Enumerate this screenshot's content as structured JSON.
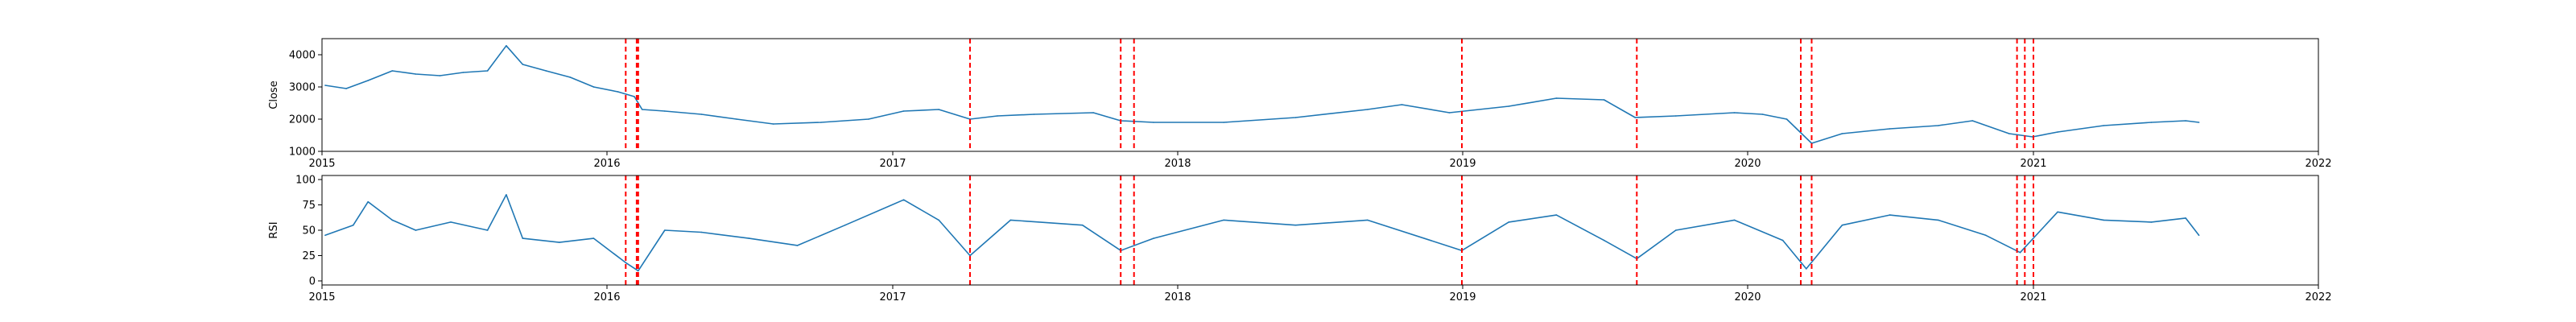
{
  "chart_data": [
    {
      "type": "line",
      "ylabel": "Close",
      "xlim": [
        "2015-01-01",
        "2022-01-01"
      ],
      "ylim": [
        1000,
        4500
      ],
      "xticks": [
        "2015",
        "2016",
        "2017",
        "2018",
        "2019",
        "2020",
        "2021",
        "2022"
      ],
      "yticks": [
        1000,
        2000,
        3000,
        4000
      ],
      "grid": false,
      "series": [
        {
          "color": "#1f77b4",
          "points": [
            [
              "2015-01-05",
              3050
            ],
            [
              "2015-02-01",
              2950
            ],
            [
              "2015-03-01",
              3200
            ],
            [
              "2015-04-01",
              3500
            ],
            [
              "2015-05-01",
              3400
            ],
            [
              "2015-06-01",
              3350
            ],
            [
              "2015-07-01",
              3450
            ],
            [
              "2015-08-01",
              3500
            ],
            [
              "2015-08-25",
              4280
            ],
            [
              "2015-09-15",
              3700
            ],
            [
              "2015-10-15",
              3500
            ],
            [
              "2015-11-15",
              3300
            ],
            [
              "2015-12-15",
              3000
            ],
            [
              "2016-01-15",
              2850
            ],
            [
              "2016-02-05",
              2700
            ],
            [
              "2016-02-15",
              2300
            ],
            [
              "2016-03-15",
              2250
            ],
            [
              "2016-05-01",
              2150
            ],
            [
              "2016-06-15",
              2000
            ],
            [
              "2016-08-01",
              1850
            ],
            [
              "2016-10-01",
              1900
            ],
            [
              "2016-12-01",
              2000
            ],
            [
              "2017-01-15",
              2250
            ],
            [
              "2017-03-01",
              2300
            ],
            [
              "2017-04-10",
              2000
            ],
            [
              "2017-05-15",
              2100
            ],
            [
              "2017-07-01",
              2150
            ],
            [
              "2017-09-15",
              2200
            ],
            [
              "2017-10-20",
              1950
            ],
            [
              "2017-12-01",
              1900
            ],
            [
              "2018-03-01",
              1900
            ],
            [
              "2018-06-01",
              2050
            ],
            [
              "2018-09-01",
              2300
            ],
            [
              "2018-10-15",
              2450
            ],
            [
              "2018-12-15",
              2200
            ],
            [
              "2019-03-01",
              2400
            ],
            [
              "2019-05-01",
              2650
            ],
            [
              "2019-07-01",
              2600
            ],
            [
              "2019-08-10",
              2050
            ],
            [
              "2019-10-01",
              2100
            ],
            [
              "2019-12-15",
              2200
            ],
            [
              "2020-01-20",
              2150
            ],
            [
              "2020-02-20",
              2000
            ],
            [
              "2020-03-23",
              1250
            ],
            [
              "2020-05-01",
              1550
            ],
            [
              "2020-07-01",
              1700
            ],
            [
              "2020-09-01",
              1800
            ],
            [
              "2020-10-15",
              1950
            ],
            [
              "2020-12-01",
              1550
            ],
            [
              "2020-12-31",
              1450
            ],
            [
              "2021-02-01",
              1600
            ],
            [
              "2021-04-01",
              1800
            ],
            [
              "2021-06-01",
              1900
            ],
            [
              "2021-07-15",
              1950
            ],
            [
              "2021-08-01",
              1900
            ]
          ]
        }
      ],
      "vlines": [
        "2016-01-25",
        "2016-02-08",
        "2016-02-10",
        "2017-04-10",
        "2017-10-20",
        "2017-11-06",
        "2018-12-31",
        "2019-08-12",
        "2020-03-09",
        "2020-03-23",
        "2020-12-11",
        "2020-12-21",
        "2021-01-01"
      ],
      "vline_color": "#ff0000"
    },
    {
      "type": "line",
      "ylabel": "RSI",
      "xlim": [
        "2015-01-01",
        "2022-01-01"
      ],
      "ylim": [
        -4,
        104
      ],
      "xticks": [
        "2015",
        "2016",
        "2017",
        "2018",
        "2019",
        "2020",
        "2021",
        "2022"
      ],
      "yticks": [
        0,
        25,
        50,
        75,
        100
      ],
      "grid": false,
      "series": [
        {
          "color": "#1f77b4",
          "points": [
            [
              "2015-01-05",
              45
            ],
            [
              "2015-02-10",
              55
            ],
            [
              "2015-03-01",
              78
            ],
            [
              "2015-04-01",
              60
            ],
            [
              "2015-05-01",
              50
            ],
            [
              "2015-06-15",
              58
            ],
            [
              "2015-08-01",
              50
            ],
            [
              "2015-08-25",
              85
            ],
            [
              "2015-09-15",
              42
            ],
            [
              "2015-11-01",
              38
            ],
            [
              "2015-12-15",
              42
            ],
            [
              "2016-01-25",
              18
            ],
            [
              "2016-02-10",
              10
            ],
            [
              "2016-03-15",
              50
            ],
            [
              "2016-05-01",
              48
            ],
            [
              "2016-07-01",
              42
            ],
            [
              "2016-09-01",
              35
            ],
            [
              "2016-11-01",
              55
            ],
            [
              "2017-01-15",
              80
            ],
            [
              "2017-03-01",
              60
            ],
            [
              "2017-04-10",
              25
            ],
            [
              "2017-06-01",
              60
            ],
            [
              "2017-09-01",
              55
            ],
            [
              "2017-10-20",
              30
            ],
            [
              "2017-12-01",
              42
            ],
            [
              "2018-03-01",
              60
            ],
            [
              "2018-06-01",
              55
            ],
            [
              "2018-09-01",
              60
            ],
            [
              "2018-12-31",
              30
            ],
            [
              "2019-03-01",
              58
            ],
            [
              "2019-05-01",
              65
            ],
            [
              "2019-07-01",
              40
            ],
            [
              "2019-08-12",
              22
            ],
            [
              "2019-10-01",
              50
            ],
            [
              "2019-12-15",
              60
            ],
            [
              "2020-02-15",
              40
            ],
            [
              "2020-03-16",
              12
            ],
            [
              "2020-05-01",
              55
            ],
            [
              "2020-07-01",
              65
            ],
            [
              "2020-09-01",
              60
            ],
            [
              "2020-11-01",
              45
            ],
            [
              "2020-12-15",
              28
            ],
            [
              "2021-02-01",
              68
            ],
            [
              "2021-04-01",
              60
            ],
            [
              "2021-06-01",
              58
            ],
            [
              "2021-07-15",
              62
            ],
            [
              "2021-08-01",
              45
            ]
          ]
        }
      ],
      "vlines": [
        "2016-01-25",
        "2016-02-08",
        "2016-02-10",
        "2017-04-10",
        "2017-10-20",
        "2017-11-06",
        "2018-12-31",
        "2019-08-12",
        "2020-03-09",
        "2020-03-23",
        "2020-12-11",
        "2020-12-21",
        "2021-01-01"
      ],
      "vline_color": "#ff0000"
    }
  ]
}
